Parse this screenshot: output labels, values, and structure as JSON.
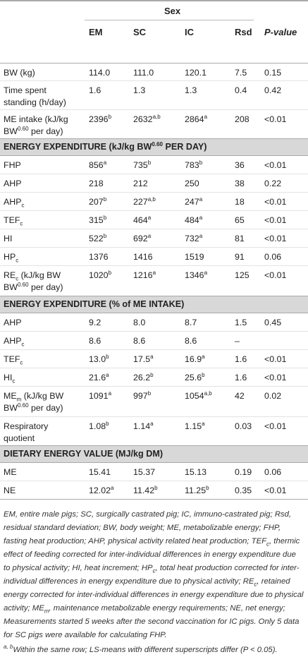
{
  "header": {
    "group": "Sex",
    "cols": [
      "EM",
      "SC",
      "IC",
      "Rsd",
      "P-value"
    ]
  },
  "rows_a": [
    {
      "label": "BW (kg)",
      "em": "114.0",
      "sc": "111.0",
      "ic": "120.1",
      "rsd": "7.5",
      "p": "0.15"
    },
    {
      "label": "Time spent standing (h/day)",
      "em": "1.6",
      "sc": "1.3",
      "ic": "1.3",
      "rsd": "0.4",
      "p": "0.42"
    },
    {
      "label_a": "ME intake (kJ/kg BW",
      "label_sup": "0.60",
      "label_b": " per day)",
      "em": "2396",
      "em_s": "b",
      "sc": "2632",
      "sc_s": "a,b",
      "ic": "2864",
      "ic_s": "a",
      "rsd": "208",
      "p": "<0.01"
    }
  ],
  "sections": {
    "s1_a": "ENERGY EXPENDITURE (kJ/kg BW",
    "s1_sup": "0.60",
    "s1_b": " PER DAY)",
    "s2": "ENERGY EXPENDITURE (% of ME INTAKE)",
    "s3": "DIETARY ENERGY VALUE (MJ/kg DM)"
  },
  "rows_b": [
    {
      "l": "FHP",
      "ls": "",
      "em": "856",
      "em_s": "a",
      "sc": "735",
      "sc_s": "b",
      "ic": "783",
      "ic_s": "b",
      "rsd": "36",
      "p": "<0.01"
    },
    {
      "l": "AHP",
      "ls": "",
      "em": "218",
      "em_s": "",
      "sc": "212",
      "sc_s": "",
      "ic": "250",
      "ic_s": "",
      "rsd": "38",
      "p": "0.22"
    },
    {
      "l": "AHP",
      "ls": "c",
      "em": "207",
      "em_s": "b",
      "sc": "227",
      "sc_s": "a,b",
      "ic": "247",
      "ic_s": "a",
      "rsd": "18",
      "p": "<0.01"
    },
    {
      "l": "TEF",
      "ls": "c",
      "em": "315",
      "em_s": "b",
      "sc": "464",
      "sc_s": "a",
      "ic": "484",
      "ic_s": "a",
      "rsd": "65",
      "p": "<0.01"
    },
    {
      "l": "HI",
      "ls": "",
      "em": "522",
      "em_s": "b",
      "sc": "692",
      "sc_s": "a",
      "ic": "732",
      "ic_s": "a",
      "rsd": "81",
      "p": "<0.01"
    },
    {
      "l": "HP",
      "ls": "c",
      "em": "1376",
      "em_s": "",
      "sc": "1416",
      "sc_s": "",
      "ic": "1519",
      "ic_s": "",
      "rsd": "91",
      "p": "0.06"
    }
  ],
  "rec": {
    "l": "RE",
    "ls": "c",
    "l2": " (kJ/kg BW",
    "lsup": "0.60",
    "l3": " per day)",
    "em": "1020",
    "em_s": "b",
    "sc": "1216",
    "sc_s": "a",
    "ic": "1346",
    "ic_s": "a",
    "rsd": "125",
    "p": "<0.01"
  },
  "rows_c": [
    {
      "l": "AHP",
      "ls": "",
      "em": "9.2",
      "em_s": "",
      "sc": "8.0",
      "sc_s": "",
      "ic": "8.7",
      "ic_s": "",
      "rsd": "1.5",
      "p": "0.45"
    },
    {
      "l": "AHP",
      "ls": "c",
      "em": "8.6",
      "em_s": "",
      "sc": "8.6",
      "sc_s": "",
      "ic": "8.6",
      "ic_s": "",
      "rsd": "–",
      "p": ""
    },
    {
      "l": "TEF",
      "ls": "c",
      "em": "13.0",
      "em_s": "b",
      "sc": "17.5",
      "sc_s": "a",
      "ic": "16.9",
      "ic_s": "a",
      "rsd": "1.6",
      "p": "<0.01"
    },
    {
      "l": "HI",
      "ls": "c",
      "em": "21.6",
      "em_s": "a",
      "sc": "26.2",
      "sc_s": "b",
      "ic": "25.6",
      "ic_s": "b",
      "rsd": "1.6",
      "p": "<0.01"
    }
  ],
  "mem": {
    "l": "ME",
    "ls": "m",
    "l2": " (kJ/kg BW",
    "lsup": "0.60",
    "l3": " per day)",
    "em": "1091",
    "em_s": "a",
    "sc": "997",
    "sc_s": "b",
    "ic": "1054",
    "ic_s": "a,b",
    "rsd": "42",
    "p": "0.02"
  },
  "rq": {
    "l": "Respiratory quotient",
    "em": "1.08",
    "em_s": "b",
    "sc": "1.14",
    "sc_s": "a",
    "ic": "1.15",
    "ic_s": "a",
    "rsd": "0.03",
    "p": "<0.01"
  },
  "rows_d": [
    {
      "l": "ME",
      "em": "15.41",
      "em_s": "",
      "sc": "15.37",
      "sc_s": "",
      "ic": "15.13",
      "ic_s": "",
      "rsd": "0.19",
      "p": "0.06"
    },
    {
      "l": "NE",
      "em": "12.02",
      "em_s": "a",
      "sc": "11.42",
      "sc_s": "b",
      "ic": "11.25",
      "ic_s": "b",
      "rsd": "0.35",
      "p": "<0.01"
    }
  ],
  "footnote": {
    "p1": "EM, entire male pigs; SC, surgically castrated pig; IC, immuno-castrated pig; Rsd, residual standard deviation; BW, body weight; ME, metabolizable energy; FHP, fasting heat production; AHP, physical activity related heat production; TEF",
    "p1_sub1": "c",
    "p1b": ", thermic effect of feeding corrected for inter-individual differences in energy expenditure due to physical activity; HI, heat increment; HP",
    "p1_sub2": "c",
    "p1c": ", total heat production corrected for inter-individual differences in energy expenditure due to physical activity; RE",
    "p1_sub3": "c",
    "p1d": ", retained energy corrected for inter-individual differences in energy expenditure due to physical activity; ME",
    "p1_sub4": "m",
    "p1e": ", maintenance metabolizable energy requirements; NE, net energy; Measurements started 5 weeks after the second vaccination for IC pigs. Only 5 data for SC pigs were available for calculating FHP.",
    "p2_sup": "a, b",
    "p2": "Within the same row; LS-means with different superscripts differ (P < 0.05)."
  }
}
